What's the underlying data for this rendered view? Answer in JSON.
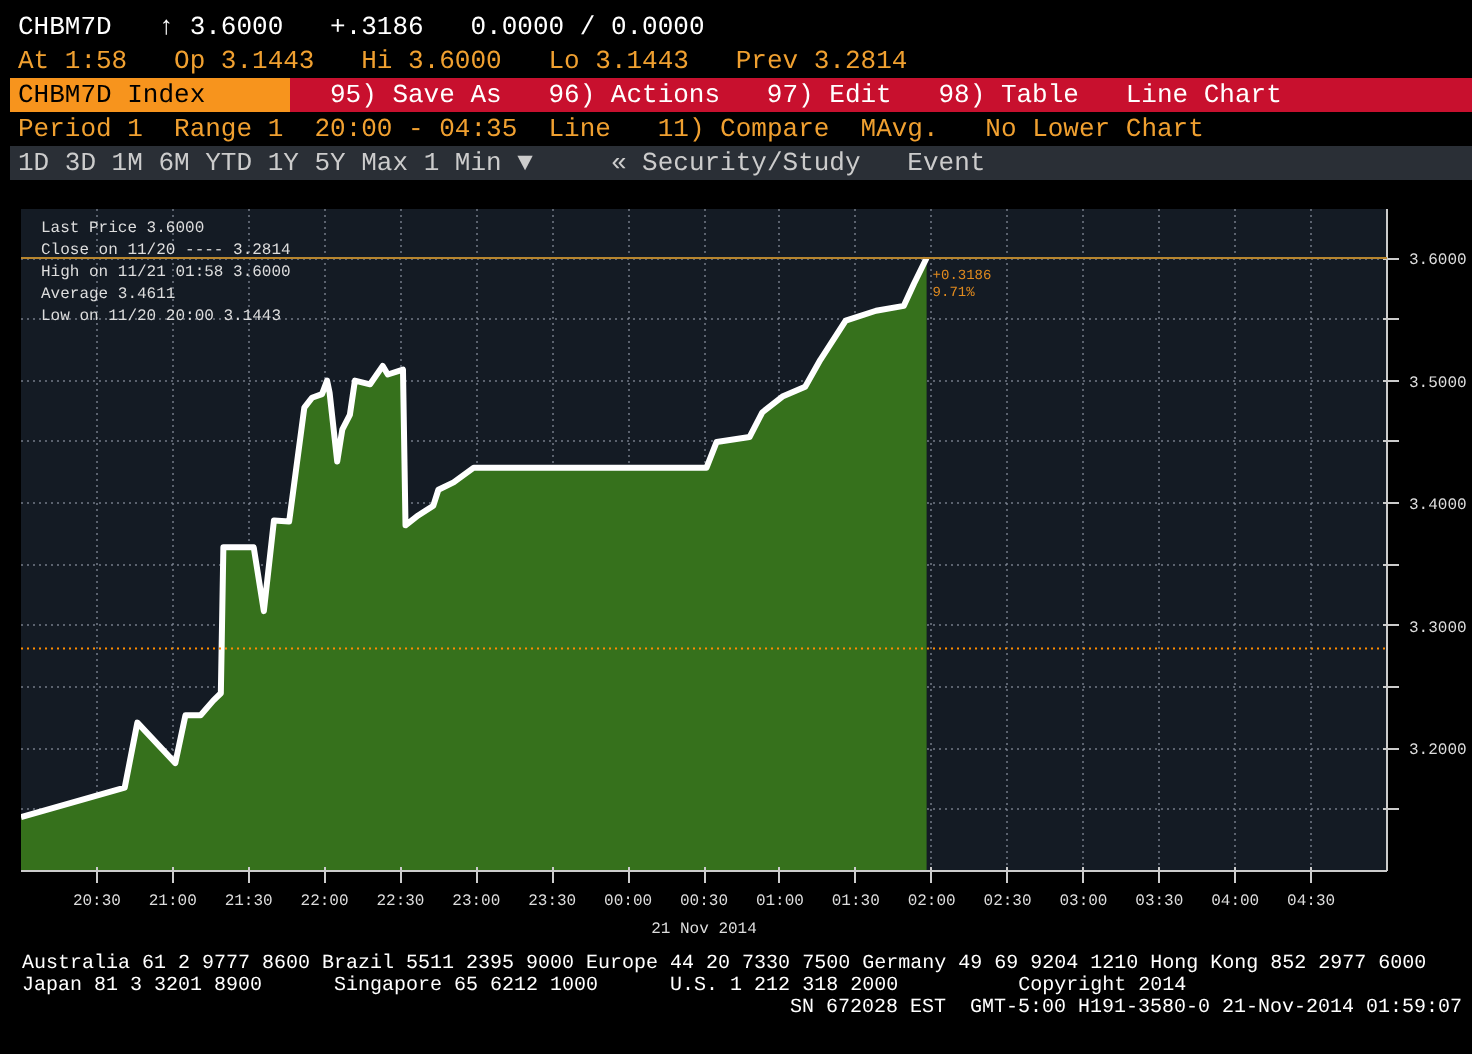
{
  "chart_data": {
    "type": "area",
    "title": "CHBM7D Index",
    "xlabel": "21 Nov 2014",
    "annotations": [
      "CHBM7D   ↑ 3.6000   +.3186   0.0000 / 0.0000",
      "At 1:58   Op 3.1443   Hi 3.6000   Lo 3.1443   Prev 3.2814",
      "95) Save As   96) Actions   97) Edit   98) Table   Line Chart",
      "Period 1  Range 1  20:00 - 04:35  Line   11) Compare  MAvg.   No Lower Chart",
      "1D 3D 1M 6M YTD 1Y 5Y Max 1 Min ▼     « Security/Study   Event",
      "Last Price 3.6000",
      "Close on 11/20 ---- 3.2814",
      "High on 11/21 01:58 3.6000",
      "Average 3.4611",
      "Low on 11/20 20:00 3.1443",
      {
        "text": "+0.3186",
        "x": "2014-11-21T01:58",
        "y": 3.6
      },
      {
        "text": "9.71%",
        "x": "2014-11-21T01:58",
        "y": 3.6
      },
      "Australia 61 2 9777 8600 Brazil 5511 2395 9000 Europe 44 20 7330 7500 Germany 49 69 9204 1210 Hong Kong 852 2977 6000",
      "Japan 81 3 3201 8900      Singapore 65 6212 1000      U.S. 1 212 318 2000          Copyright 2014",
      "SN 672028 EST  GMT-5:00 H191-3580-0 21-Nov-2014 01:59:07"
    ],
    "x": [
      "2014-11-20T20:00",
      "2014-11-20T20:41",
      "2014-11-20T20:46",
      "2014-11-20T21:01",
      "2014-11-20T21:05",
      "2014-11-20T21:11",
      "2014-11-20T21:16",
      "2014-11-20T21:19",
      "2014-11-20T21:20",
      "2014-11-20T21:32",
      "2014-11-20T21:36",
      "2014-11-20T21:40",
      "2014-11-20T21:46",
      "2014-11-20T21:52",
      "2014-11-20T21:55",
      "2014-11-20T21:59",
      "2014-11-20T22:01",
      "2014-11-20T22:02",
      "2014-11-20T22:05",
      "2014-11-20T22:07",
      "2014-11-20T22:10",
      "2014-11-20T22:12",
      "2014-11-20T22:18",
      "2014-11-20T22:23",
      "2014-11-20T22:25",
      "2014-11-20T22:31",
      "2014-11-20T22:32",
      "2014-11-20T22:37",
      "2014-11-20T22:43",
      "2014-11-20T22:45",
      "2014-11-20T22:51",
      "2014-11-20T22:59",
      "2014-11-21T00:31",
      "2014-11-21T00:35",
      "2014-11-21T00:48",
      "2014-11-21T00:53",
      "2014-11-21T01:01",
      "2014-11-21T01:10",
      "2014-11-21T01:16",
      "2014-11-21T01:26",
      "2014-11-21T01:38",
      "2014-11-21T01:49",
      "2014-11-21T01:53",
      "2014-11-21T01:58"
    ],
    "series": [
      {
        "color": "#36711c",
        "values": [
          3.144,
          3.168,
          3.221,
          3.188,
          3.227,
          3.227,
          3.239,
          3.245,
          3.364,
          3.364,
          3.312,
          3.386,
          3.385,
          3.478,
          3.486,
          3.489,
          3.5,
          3.49,
          3.434,
          3.46,
          3.472,
          3.5,
          3.497,
          3.512,
          3.505,
          3.509,
          3.382,
          3.39,
          3.398,
          3.411,
          3.417,
          3.429,
          3.429,
          3.45,
          3.454,
          3.474,
          3.487,
          3.495,
          3.517,
          3.549,
          3.557,
          3.561,
          3.579,
          3.6
        ]
      }
    ],
    "xlim": [
      "2014-11-20T20:00",
      "2014-11-21T05:00"
    ],
    "xticks": [
      {
        "value": "2014-11-20T20:30",
        "label": "20:30"
      },
      {
        "value": "2014-11-20T21:00",
        "label": "21:00"
      },
      {
        "value": "2014-11-20T21:30",
        "label": "21:30"
      },
      {
        "value": "2014-11-20T22:00",
        "label": "22:00"
      },
      {
        "value": "2014-11-20T22:30",
        "label": "22:30"
      },
      {
        "value": "2014-11-20T23:00",
        "label": "23:00"
      },
      {
        "value": "2014-11-20T23:30",
        "label": "23:30"
      },
      {
        "value": "2014-11-21T00:00",
        "label": "00:00"
      },
      {
        "value": "2014-11-21T00:30",
        "label": "00:30"
      },
      {
        "value": "2014-11-21T01:00",
        "label": "01:00"
      },
      {
        "value": "2014-11-21T01:30",
        "label": "01:30"
      },
      {
        "value": "2014-11-21T02:00",
        "label": "02:00"
      },
      {
        "value": "2014-11-21T02:30",
        "label": "02:30"
      },
      {
        "value": "2014-11-21T03:00",
        "label": "03:00"
      },
      {
        "value": "2014-11-21T03:30",
        "label": "03:30"
      },
      {
        "value": "2014-11-21T04:00",
        "label": "04:00"
      },
      {
        "value": "2014-11-21T04:30",
        "label": "04:30"
      }
    ],
    "ylim": [
      3.1,
      3.64
    ],
    "yticks": [
      {
        "value": 3.15,
        "label": null
      },
      {
        "value": 3.2,
        "label": "3.2000"
      },
      {
        "value": 3.25,
        "label": null
      },
      {
        "value": 3.3,
        "label": "3.3000"
      },
      {
        "value": 3.35,
        "label": null
      },
      {
        "value": 3.4,
        "label": "3.4000"
      },
      {
        "value": 3.45,
        "label": null
      },
      {
        "value": 3.5,
        "label": "3.5000"
      },
      {
        "value": 3.55,
        "label": null
      },
      {
        "value": 3.6,
        "label": "3.6000"
      }
    ],
    "ref_lines": [
      {
        "axis": "y",
        "value": 3.6,
        "color": "#b8862e",
        "line_style": "solid"
      },
      {
        "axis": "y",
        "value": 3.2814,
        "color": "#ff8c00",
        "line_style": "dotted"
      }
    ],
    "grid": true
  }
}
